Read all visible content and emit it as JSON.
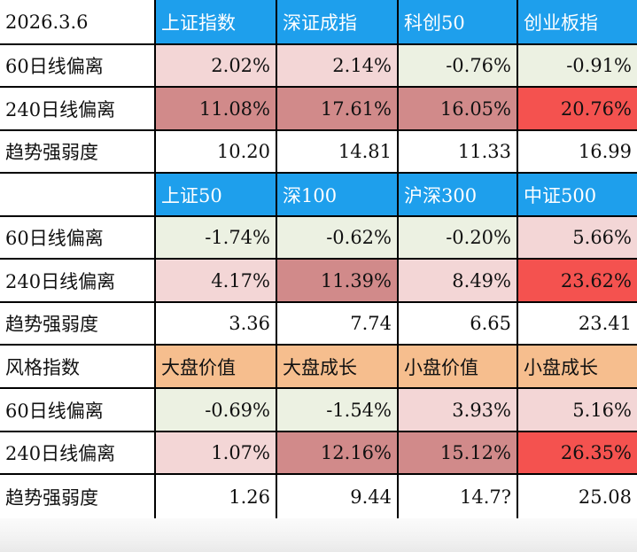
{
  "colors": {
    "blue_header": "#1e9fec",
    "orange_header": "#f6be8e",
    "light_green": "#ecf1e2",
    "pink": "#f3d6d6",
    "rose": "#d18a8a",
    "red": "#f4524f",
    "white": "#ffffff"
  },
  "sections": [
    {
      "corner": "2026.3.6",
      "header_color": "blue_header",
      "headers": [
        "上证指数",
        "深证成指",
        "科创50",
        "创业板指"
      ],
      "rows": [
        {
          "label": "60日线偏离",
          "values": [
            "2.02%",
            "2.14%",
            "-0.76%",
            "-0.91%"
          ],
          "colors": [
            "pink",
            "pink",
            "light_green",
            "light_green"
          ]
        },
        {
          "label": "240日线偏离",
          "values": [
            "11.08%",
            "17.61%",
            "16.05%",
            "20.76%"
          ],
          "colors": [
            "rose",
            "rose",
            "rose",
            "red"
          ]
        },
        {
          "label": "趋势强弱度",
          "values": [
            "10.20",
            "14.81",
            "11.33",
            "16.99"
          ],
          "colors": [
            "white",
            "white",
            "white",
            "white"
          ]
        }
      ]
    },
    {
      "corner": "",
      "header_color": "blue_header",
      "headers": [
        "上证50",
        "深100",
        "沪深300",
        "中证500"
      ],
      "rows": [
        {
          "label": "60日线偏离",
          "values": [
            "-1.74%",
            "-0.62%",
            "-0.20%",
            "5.66%"
          ],
          "colors": [
            "light_green",
            "light_green",
            "light_green",
            "pink"
          ]
        },
        {
          "label": "240日线偏离",
          "values": [
            "4.17%",
            "11.39%",
            "8.49%",
            "23.62%"
          ],
          "colors": [
            "pink",
            "rose",
            "pink",
            "red"
          ]
        },
        {
          "label": "趋势强弱度",
          "values": [
            "3.36",
            "7.74",
            "6.65",
            "23.41"
          ],
          "colors": [
            "white",
            "white",
            "white",
            "white"
          ]
        }
      ]
    },
    {
      "corner": "风格指数",
      "header_color": "orange_header",
      "headers": [
        "大盘价值",
        "大盘成长",
        "小盘价值",
        "小盘成长"
      ],
      "rows": [
        {
          "label": "60日线偏离",
          "values": [
            "-0.69%",
            "-1.54%",
            "3.93%",
            "5.16%"
          ],
          "colors": [
            "light_green",
            "light_green",
            "pink",
            "pink"
          ]
        },
        {
          "label": "240日线偏离",
          "values": [
            "1.07%",
            "12.16%",
            "15.12%",
            "26.35%"
          ],
          "colors": [
            "pink",
            "rose",
            "rose",
            "red"
          ]
        },
        {
          "label": "趋势强弱度",
          "values": [
            "1.26",
            "9.44",
            "14.7?",
            "25.08"
          ],
          "colors": [
            "white",
            "white",
            "white",
            "white"
          ]
        }
      ]
    }
  ]
}
